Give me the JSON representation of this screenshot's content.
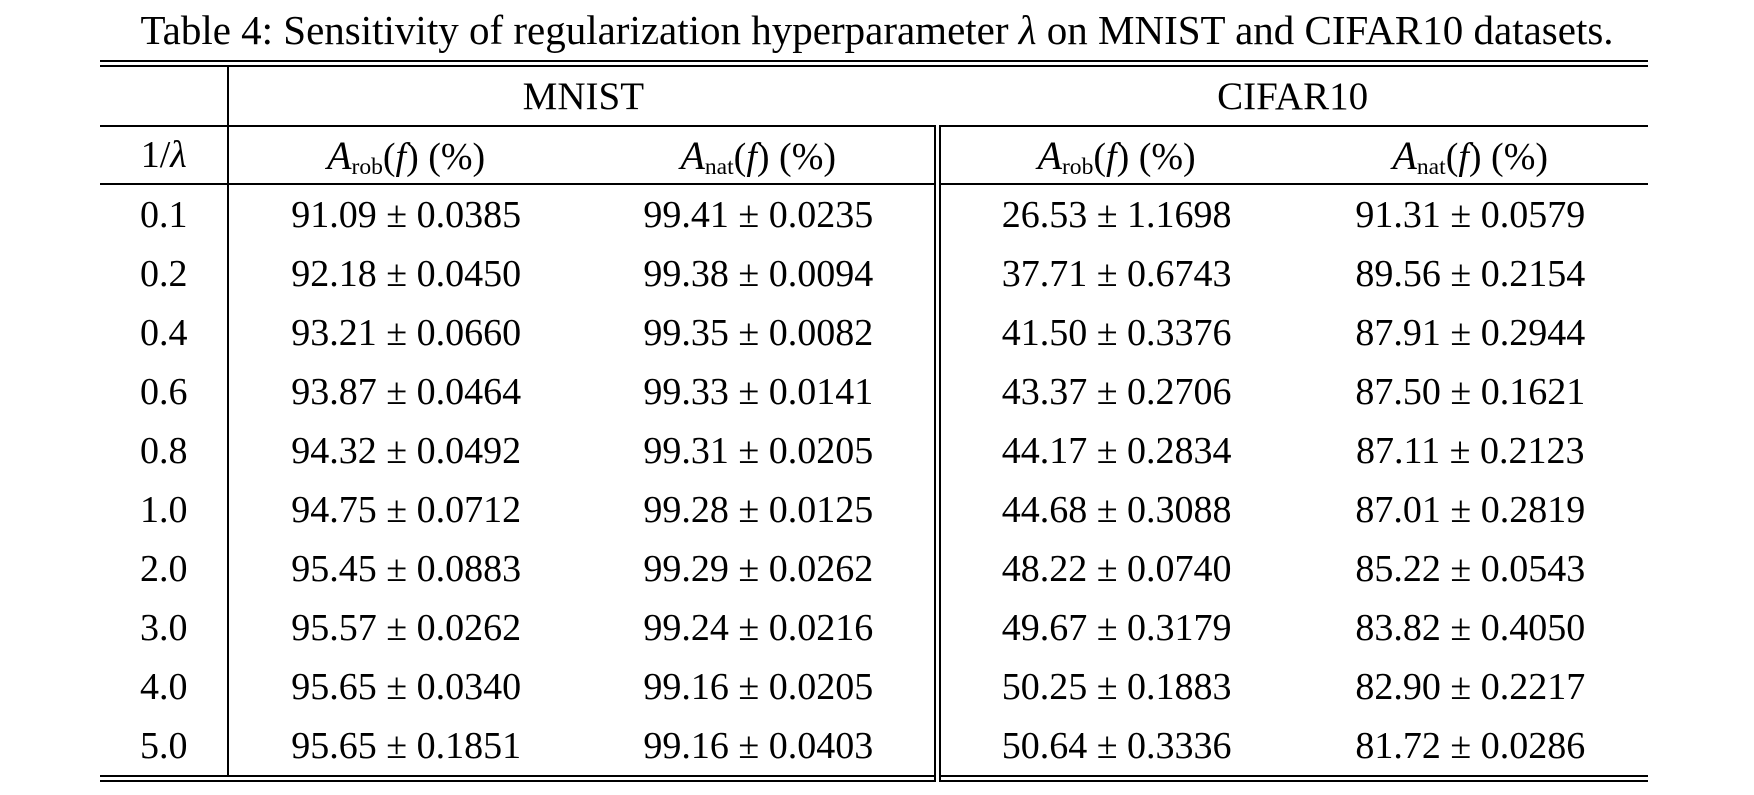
{
  "title": {
    "prefix": "Table 4: Sensitivity of regularization hyperparameter ",
    "lambda": "λ",
    "suffix": " on MNIST and CIFAR10 datasets."
  },
  "table": {
    "groups": [
      {
        "label": "MNIST"
      },
      {
        "label": "CIFAR10"
      }
    ],
    "corner_label": {
      "pre": "1/",
      "lambda": "λ"
    },
    "metric_headers": {
      "symbol": "A",
      "rob_sub": "rob",
      "nat_sub": "nat",
      "open": "(",
      "f": "f",
      "close": ") (%)"
    },
    "rows": [
      {
        "inv_lambda": "0.1",
        "mnist_rob": "91.09 ± 0.0385",
        "mnist_nat": "99.41 ± 0.0235",
        "cifar_rob": "26.53 ± 1.1698",
        "cifar_nat": "91.31 ± 0.0579"
      },
      {
        "inv_lambda": "0.2",
        "mnist_rob": "92.18 ± 0.0450",
        "mnist_nat": "99.38 ± 0.0094",
        "cifar_rob": "37.71 ± 0.6743",
        "cifar_nat": "89.56 ± 0.2154"
      },
      {
        "inv_lambda": "0.4",
        "mnist_rob": "93.21 ± 0.0660",
        "mnist_nat": "99.35 ± 0.0082",
        "cifar_rob": "41.50 ± 0.3376",
        "cifar_nat": "87.91 ± 0.2944"
      },
      {
        "inv_lambda": "0.6",
        "mnist_rob": "93.87 ± 0.0464",
        "mnist_nat": "99.33 ± 0.0141",
        "cifar_rob": "43.37 ± 0.2706",
        "cifar_nat": "87.50 ± 0.1621"
      },
      {
        "inv_lambda": "0.8",
        "mnist_rob": "94.32 ± 0.0492",
        "mnist_nat": "99.31 ± 0.0205",
        "cifar_rob": "44.17 ± 0.2834",
        "cifar_nat": "87.11 ± 0.2123"
      },
      {
        "inv_lambda": "1.0",
        "mnist_rob": "94.75 ± 0.0712",
        "mnist_nat": "99.28 ± 0.0125",
        "cifar_rob": "44.68 ± 0.3088",
        "cifar_nat": "87.01 ± 0.2819"
      },
      {
        "inv_lambda": "2.0",
        "mnist_rob": "95.45 ± 0.0883",
        "mnist_nat": "99.29 ± 0.0262",
        "cifar_rob": "48.22 ± 0.0740",
        "cifar_nat": "85.22 ± 0.0543"
      },
      {
        "inv_lambda": "3.0",
        "mnist_rob": "95.57 ± 0.0262",
        "mnist_nat": "99.24 ± 0.0216",
        "cifar_rob": "49.67 ± 0.3179",
        "cifar_nat": "83.82 ± 0.4050"
      },
      {
        "inv_lambda": "4.0",
        "mnist_rob": "95.65 ± 0.0340",
        "mnist_nat": "99.16 ± 0.0205",
        "cifar_rob": "50.25 ± 0.1883",
        "cifar_nat": "82.90 ± 0.2217"
      },
      {
        "inv_lambda": "5.0",
        "mnist_rob": "95.65 ± 0.1851",
        "mnist_nat": "99.16 ± 0.0403",
        "cifar_rob": "50.64 ± 0.3336",
        "cifar_nat": "81.72 ± 0.0286"
      }
    ]
  }
}
